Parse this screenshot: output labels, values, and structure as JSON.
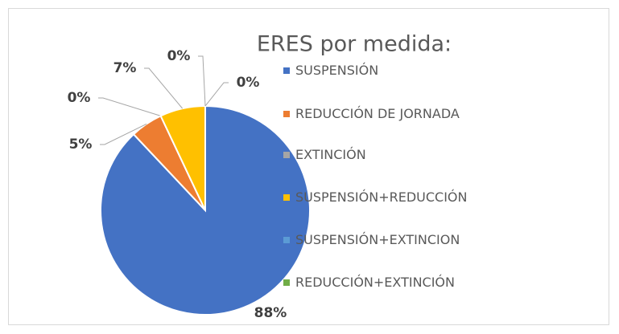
{
  "chart_data": {
    "type": "pie",
    "title": "ERES por medida:",
    "categories": [
      "SUSPENSIÓN",
      "REDUCCIÓN DE JORNADA",
      "EXTINCIÓN",
      "SUSPENSIÓN+REDUCCIÓN",
      "SUSPENSIÓN+EXTINCION",
      "REDUCCIÓN+EXTINCIÓN"
    ],
    "values": [
      88,
      5,
      0,
      7,
      0,
      0
    ],
    "value_labels": [
      "88%",
      "5%",
      "0%",
      "7%",
      "0%",
      "0%"
    ],
    "colors": [
      "#4472c4",
      "#ed7d31",
      "#a5a5a5",
      "#ffc000",
      "#5b9bd5",
      "#70ad47"
    ],
    "legend": "right"
  }
}
